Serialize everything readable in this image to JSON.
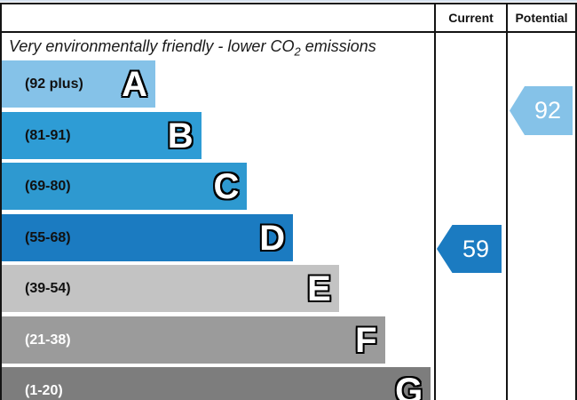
{
  "header": {
    "current": "Current",
    "potential": "Potential"
  },
  "title": {
    "before_sub": "Very environmentally friendly - lower CO",
    "sub": "2",
    "after_sub": " emissions"
  },
  "bands": [
    {
      "letter": "A",
      "range": "(92 plus)",
      "color": "#85C2E8",
      "label_color": "#111111"
    },
    {
      "letter": "B",
      "range": "(81-91)",
      "color": "#2E9CD5",
      "label_color": "#111111"
    },
    {
      "letter": "C",
      "range": "(69-80)",
      "color": "#2E99D0",
      "label_color": "#111111"
    },
    {
      "letter": "D",
      "range": "(55-68)",
      "color": "#1B7BC1",
      "label_color": "#111111"
    },
    {
      "letter": "E",
      "range": "(39-54)",
      "color": "#C3C3C3",
      "label_color": "#111111"
    },
    {
      "letter": "F",
      "range": "(21-38)",
      "color": "#9B9B9B",
      "label_color": "#ffffff"
    },
    {
      "letter": "G",
      "range": "(1-20)",
      "color": "#7D7D7D",
      "label_color": "#ffffff"
    }
  ],
  "current": {
    "value": "59",
    "color": "#1B7BC1"
  },
  "potential": {
    "value": "92",
    "color": "#85C2E8"
  },
  "chart_data": {
    "type": "bar",
    "title": "Very environmentally friendly - lower CO2 emissions",
    "categories": [
      "A",
      "B",
      "C",
      "D",
      "E",
      "F",
      "G"
    ],
    "band_ranges": [
      "(92 plus)",
      "(81-91)",
      "(69-80)",
      "(55-68)",
      "(39-54)",
      "(21-38)",
      "(1-20)"
    ],
    "band_colors": [
      "#85C2E8",
      "#2E9CD5",
      "#2E99D0",
      "#1B7BC1",
      "#C3C3C3",
      "#9B9B9B",
      "#7D7D7D"
    ],
    "columns": [
      "Current",
      "Potential"
    ],
    "current_value": 59,
    "current_band": "D",
    "potential_value": 92,
    "potential_band": "A",
    "legend_position": "none",
    "grid": false
  }
}
